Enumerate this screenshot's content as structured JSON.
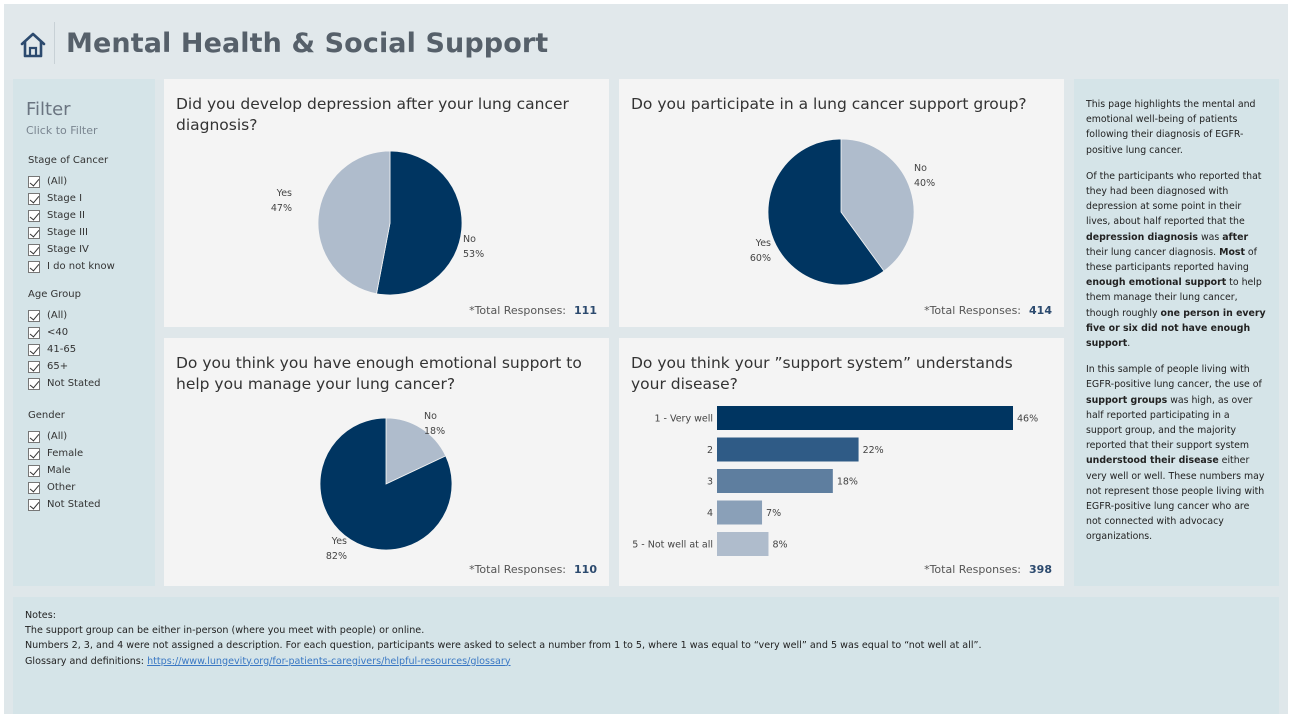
{
  "header": {
    "title": "Mental Health & Social Support",
    "home_icon": "home-icon"
  },
  "filter": {
    "title": "Filter",
    "subtitle": "Click to Filter",
    "groups": [
      {
        "title": "Stage of Cancer",
        "items": [
          "(All)",
          "Stage I",
          "Stage II",
          "Stage III",
          "Stage IV",
          "I do not know"
        ]
      },
      {
        "title": "Age Group",
        "items": [
          "(All)",
          "<40",
          "41-65",
          "65+",
          "Not Stated"
        ]
      },
      {
        "title": "Gender",
        "items": [
          "(All)",
          "Female",
          "Male",
          "Other",
          "Not Stated"
        ]
      }
    ]
  },
  "total_label": "*Total Responses:",
  "cards": {
    "depression": {
      "question": "Did you develop depression after your lung cancer diagnosis?",
      "total": "111"
    },
    "support_group": {
      "question": "Do you participate in a lung cancer support group?",
      "total": "414"
    },
    "emotional": {
      "question": "Do you think you have enough emotional support to help you manage your lung cancer?",
      "total": "110"
    },
    "understands": {
      "question": "Do you think your ”support system” understands your disease?",
      "total": "398"
    }
  },
  "chart_data": [
    {
      "type": "pie",
      "title": "Did you develop depression after your lung cancer diagnosis?",
      "categories": [
        "No",
        "Yes"
      ],
      "values": [
        53,
        47
      ],
      "value_labels": [
        "53%",
        "47%"
      ],
      "colors": [
        "#003561",
        "#afbccc"
      ]
    },
    {
      "type": "pie",
      "title": "Do you participate in a lung cancer support group?",
      "categories": [
        "No",
        "Yes"
      ],
      "values": [
        40,
        60
      ],
      "value_labels": [
        "40%",
        "60%"
      ],
      "colors": [
        "#afbccc",
        "#003561"
      ]
    },
    {
      "type": "pie",
      "title": "Do you think you have enough emotional support to help you manage your lung cancer?",
      "categories": [
        "No",
        "Yes"
      ],
      "values": [
        18,
        82
      ],
      "value_labels": [
        "18%",
        "82%"
      ],
      "colors": [
        "#afbccc",
        "#003561"
      ]
    },
    {
      "type": "bar",
      "orientation": "horizontal",
      "title": "Do you think your ”support system” understands your disease?",
      "categories": [
        "1 - Very well",
        "2",
        "3",
        "4",
        "5 - Not well at all"
      ],
      "values": [
        46,
        22,
        18,
        7,
        8
      ],
      "value_labels": [
        "46%",
        "22%",
        "18%",
        "7%",
        "8%"
      ],
      "colors": [
        "#003561",
        "#2f5b86",
        "#5e7e9f",
        "#8aa0b8",
        "#afbccc"
      ],
      "xlim": [
        0,
        46
      ]
    }
  ],
  "side_notes": {
    "p1": "This page highlights the mental and emotional well-being of patients following their diagnosis of EGFR-positive lung cancer.",
    "p2_a": "Of the participants who reported that they had been diagnosed with depression at some point in their lives, about half reported that the ",
    "p2_b": "depression diagnosis",
    "p2_c": " was ",
    "p2_d": "after",
    "p2_e": " their lung cancer diagnosis. ",
    "p2_f": "Most",
    "p2_g": " of these participants reported having ",
    "p2_h": "enough emotional support",
    "p2_i": " to help them manage their lung cancer, though roughly ",
    "p2_j": "one person in every five or six did not have enough support",
    "p2_k": ".",
    "p3_a": "In this sample of people living with EGFR-positive lung cancer, the use of ",
    "p3_b": "support groups",
    "p3_c": " was high, as over half reported participating in a support group, and the majority reported that their support system ",
    "p3_d": "understood their disease",
    "p3_e": " either very well or well. These numbers may not represent those people living with EGFR-positive lung cancer who are not connected with advocacy organizations."
  },
  "bottom_notes": {
    "title": "Notes:",
    "line1": "The support group can be either in-person (where you meet with people) or online.",
    "line2": "Numbers 2, 3, and 4 were not assigned a description.  For each question, participants were asked to select a number from 1 to 5, where 1 was equal to “very well” and 5 was equal to “not well at all”.",
    "glossary_label": "Glossary and definitions: ",
    "glossary_link": "https://www.lungevity.org/for-patients-caregivers/helpful-resources/glossary"
  }
}
